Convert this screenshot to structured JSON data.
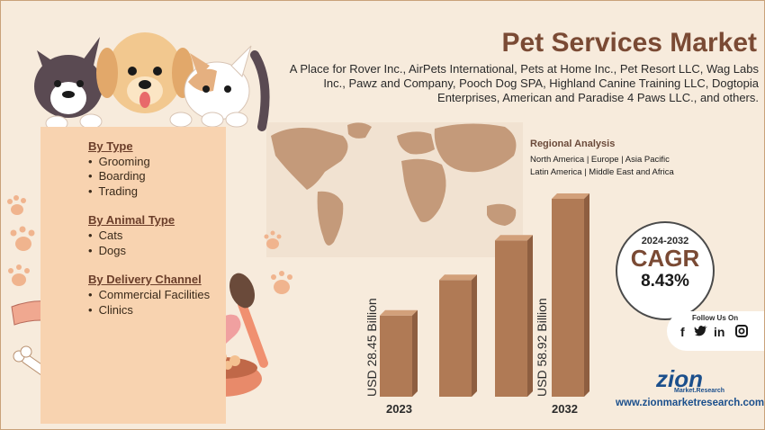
{
  "title": "Pet Services Market",
  "subtitle": "A Place for Rover Inc., AirPets International, Pets at Home Inc., Pet Resort LLC, Wag Labs Inc., Pawz and Company, Pooch Dog SPA, Highland Canine Training LLC, Dogtopia Enterprises, American and Paradise 4 Paws LLC., and others.",
  "segments": [
    {
      "heading": "By Type",
      "items": [
        "Grooming",
        "Boarding",
        "Trading"
      ]
    },
    {
      "heading": "By Animal Type",
      "items": [
        "Cats",
        "Dogs"
      ]
    },
    {
      "heading": "By Delivery Channel",
      "items": [
        "Commercial Facilities",
        "Clinics"
      ]
    }
  ],
  "bullet": "•",
  "regional": {
    "title": "Regional Analysis",
    "line1": "North America | Europe | Asia Pacific",
    "line2": "Latin America | Middle East and Africa"
  },
  "bars": {
    "start_value_label": "USD 28.45 Billion",
    "end_value_label": "USD 58.92 Billion",
    "start_year": "2023",
    "end_year": "2032",
    "relative_heights": [
      0.41,
      0.59,
      0.79,
      1.0
    ]
  },
  "cagr": {
    "years": "2024-2032",
    "label": "CAGR",
    "value": "8.43%"
  },
  "follow": {
    "label": "Follow Us On",
    "icons": [
      "facebook-icon",
      "twitter-icon",
      "linkedin-icon",
      "instagram-icon"
    ]
  },
  "brand": {
    "name": "zion",
    "tagline": "Market.Research",
    "url": "www.zionmarketresearch.com"
  },
  "colors": {
    "title": "#7a4a34",
    "panel": "#f8d3b0",
    "bar": "#b07a55",
    "map": "#c49a7a",
    "brand": "#1b4f8c"
  }
}
